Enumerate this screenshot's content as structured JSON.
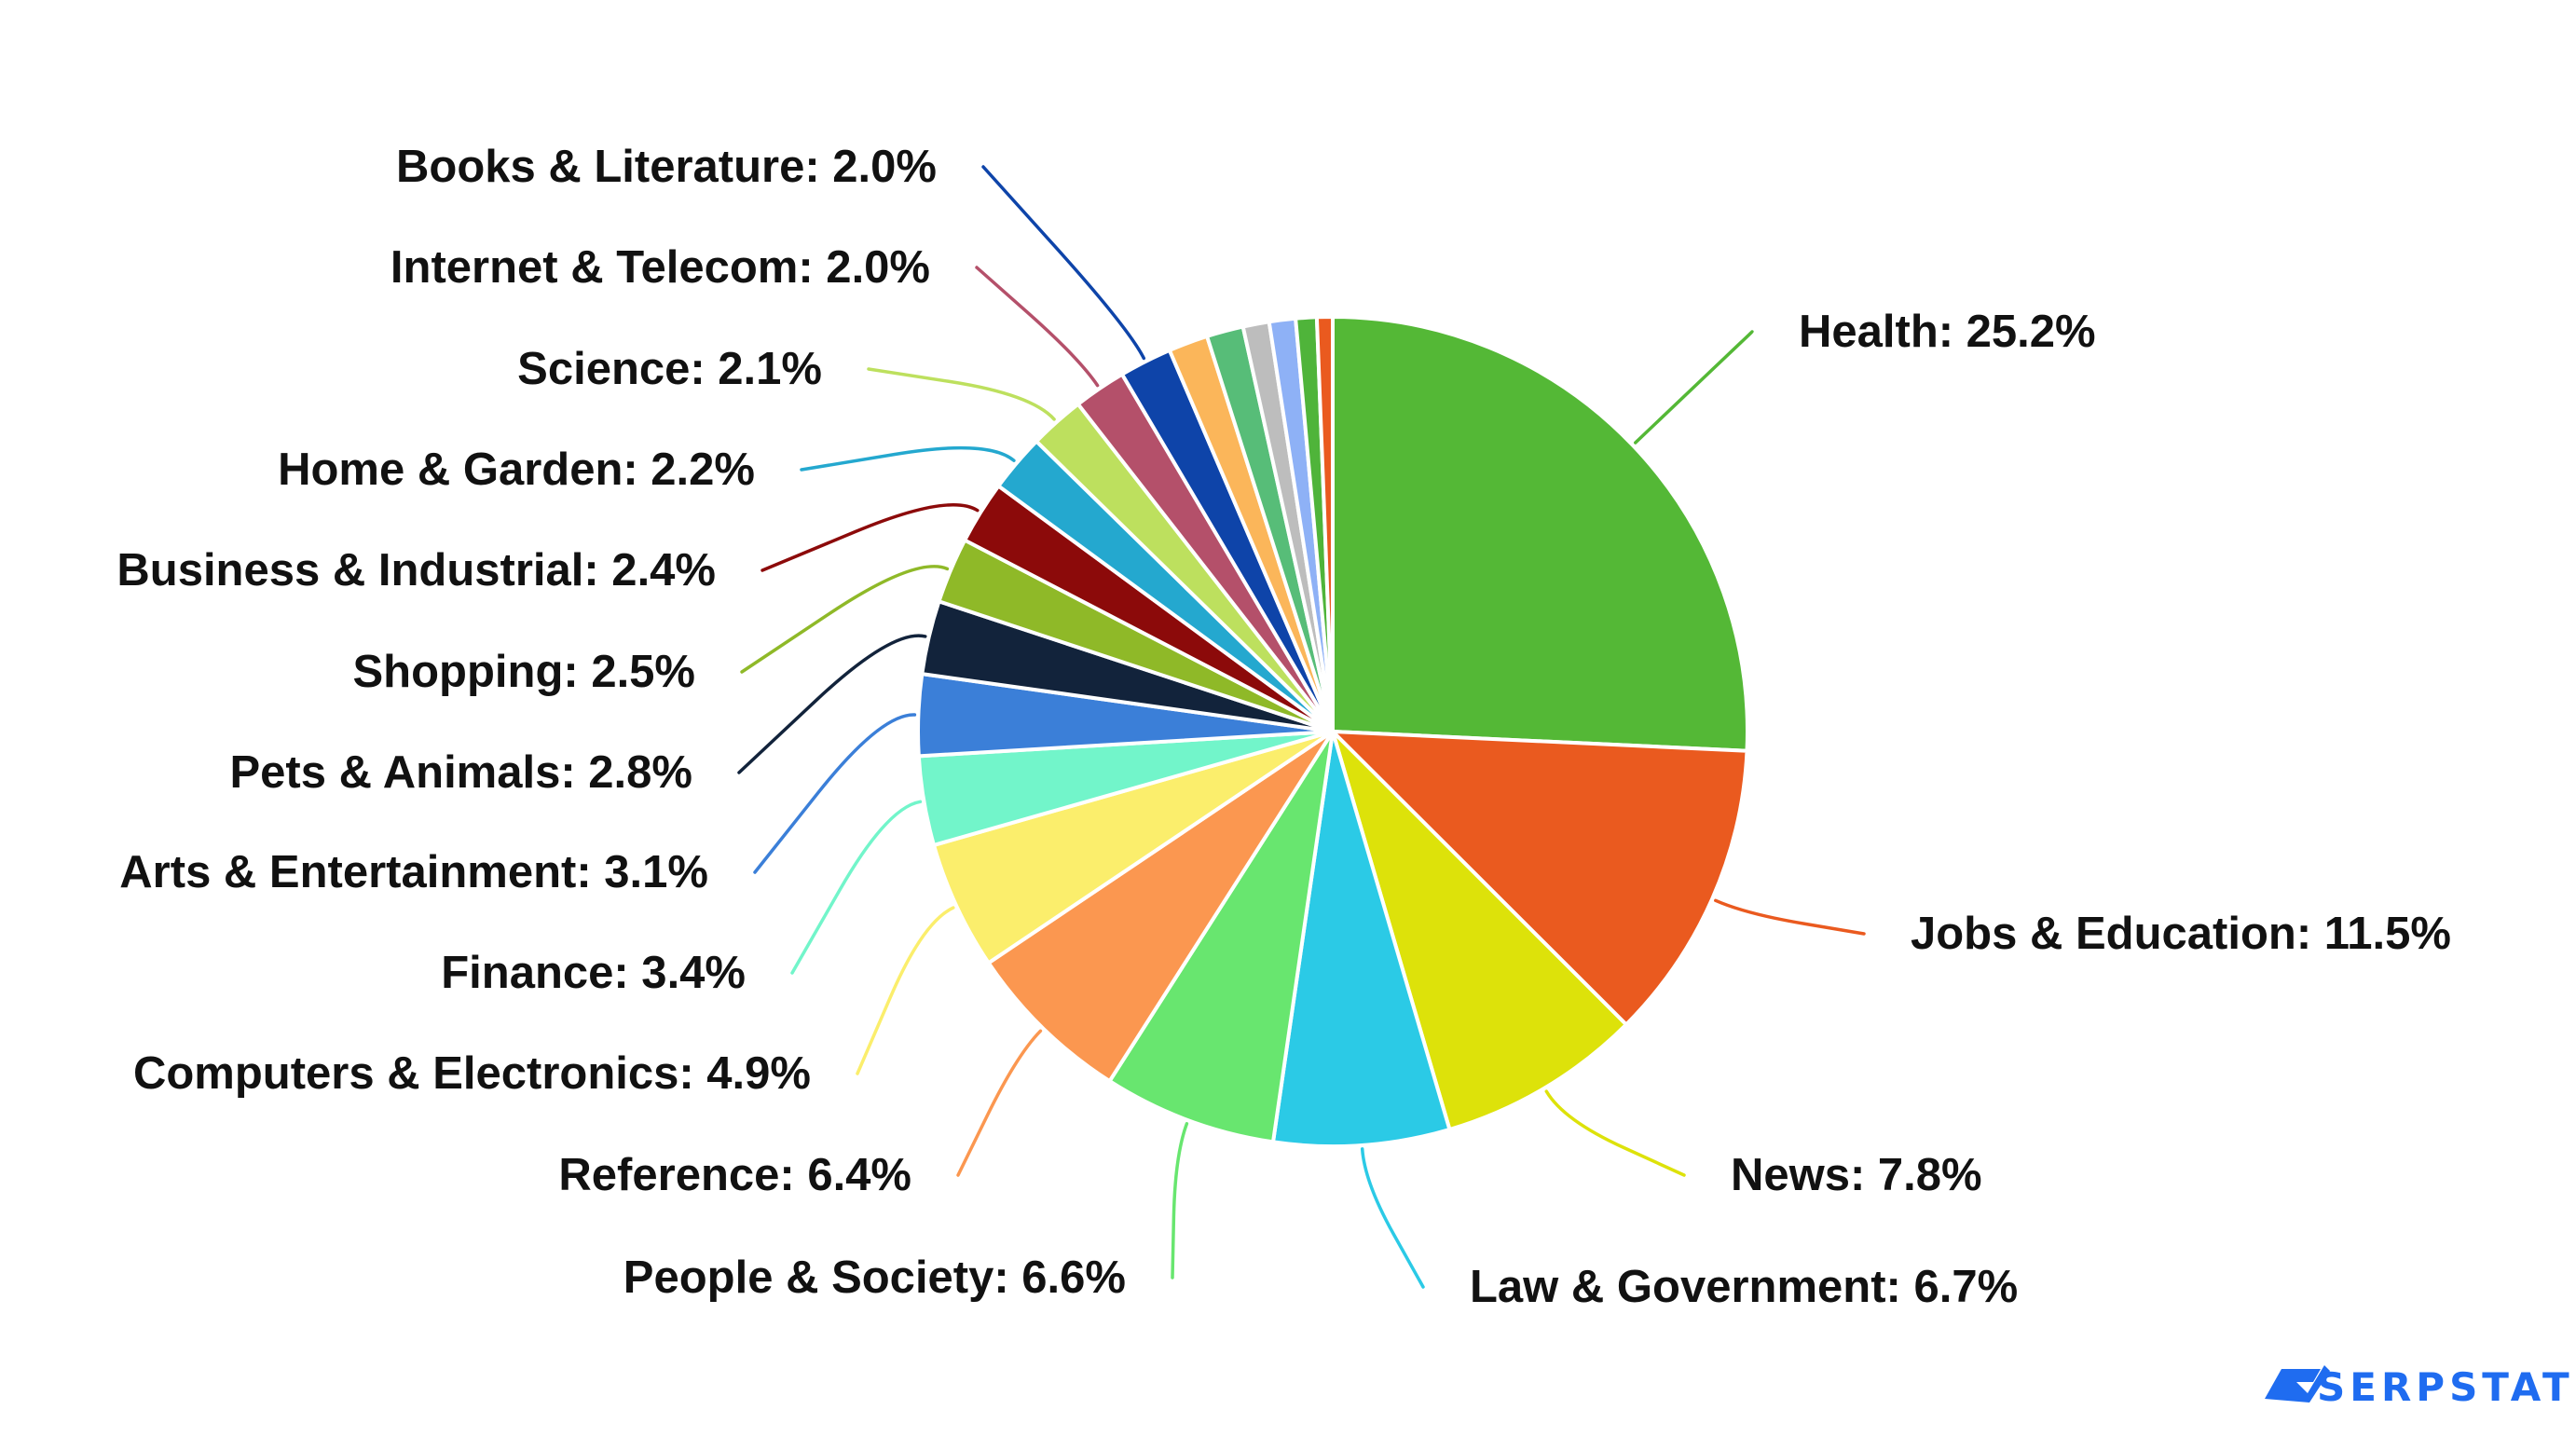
{
  "chart_data": {
    "type": "pie",
    "title": "",
    "legend": "none",
    "slices": [
      {
        "label": "Health: 25.2%",
        "value": 25.2,
        "color": "#54b836"
      },
      {
        "label": "Jobs & Education: 11.5%",
        "value": 11.5,
        "color": "#ea5a1f"
      },
      {
        "label": "News: 7.8%",
        "value": 7.8,
        "color": "#dde20a"
      },
      {
        "label": "Law & Government: 6.7%",
        "value": 6.7,
        "color": "#2bcae6"
      },
      {
        "label": "People & Society: 6.6%",
        "value": 6.6,
        "color": "#68e66f"
      },
      {
        "label": "Reference: 6.4%",
        "value": 6.4,
        "color": "#fb9750"
      },
      {
        "label": "Computers & Electronics: 4.9%",
        "value": 4.9,
        "color": "#fbee6c"
      },
      {
        "label": "Finance: 3.4%",
        "value": 3.4,
        "color": "#72f5ca"
      },
      {
        "label": "Arts & Entertainment: 3.1%",
        "value": 3.1,
        "color": "#3b7fd8"
      },
      {
        "label": "Pets & Animals: 2.8%",
        "value": 2.8,
        "color": "#12233b"
      },
      {
        "label": "Shopping: 2.5%",
        "value": 2.5,
        "color": "#8fb928"
      },
      {
        "label": "Business & Industrial: 2.4%",
        "value": 2.4,
        "color": "#8c0a0a"
      },
      {
        "label": "Home & Garden: 2.2%",
        "value": 2.2,
        "color": "#24a8cf"
      },
      {
        "label": "Science: 2.1%",
        "value": 2.1,
        "color": "#bde05e"
      },
      {
        "label": "Internet & Telecom: 2.0%",
        "value": 2.0,
        "color": "#b4506a"
      },
      {
        "label": "Books & Literature: 2.0%",
        "value": 2.0,
        "color": "#0e44a9"
      },
      {
        "label": "",
        "value": 1.5,
        "color": "#fbb65a"
      },
      {
        "label": "",
        "value": 1.4,
        "color": "#57bd78"
      },
      {
        "label": "",
        "value": 1.0,
        "color": "#bdbdbd"
      },
      {
        "label": "",
        "value": 1.0,
        "color": "#8eb1f6"
      },
      {
        "label": "",
        "value": 0.8,
        "color": "#4fb43a"
      },
      {
        "label": "",
        "value": 0.6,
        "color": "#ea5a1f"
      }
    ]
  },
  "brand": {
    "logo_text": "SERPSTAT",
    "color": "#1f6cf0"
  }
}
